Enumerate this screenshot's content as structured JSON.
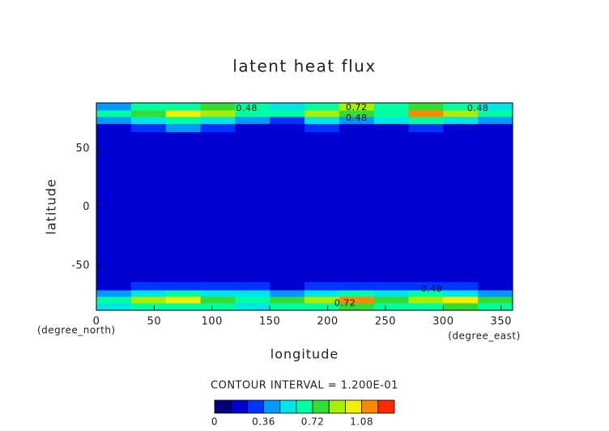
{
  "chart_data": {
    "type": "heatmap",
    "title": "latent heat flux",
    "x_label": "longitude",
    "y_label": "latitude",
    "y_units": "(degree_north)",
    "x_units": "(degree_east)",
    "interval_text": "CONTOUR INTERVAL = 1.200E-01",
    "xlim": [
      0,
      360
    ],
    "ylim": [
      -88,
      89
    ],
    "xticks": [
      0,
      50,
      100,
      150,
      200,
      250,
      300,
      350
    ],
    "yticks": [
      -50,
      0,
      50
    ],
    "x": [
      15,
      45,
      75,
      105,
      135,
      165,
      195,
      225,
      255,
      285,
      315,
      345
    ],
    "y": [
      85,
      80,
      74,
      68,
      60,
      0,
      -60,
      -68,
      -74,
      -79,
      -85
    ],
    "z": [
      [
        0.4,
        0.6,
        0.7,
        0.8,
        0.6,
        0.5,
        0.7,
        0.9,
        0.6,
        0.8,
        0.7,
        0.5
      ],
      [
        0.6,
        0.8,
        1.0,
        0.9,
        0.7,
        0.6,
        0.9,
        0.8,
        0.7,
        1.1,
        0.9,
        0.7
      ],
      [
        0.4,
        0.5,
        0.6,
        0.5,
        0.4,
        0.3,
        0.5,
        0.4,
        0.5,
        0.6,
        0.5,
        0.4
      ],
      [
        0.2,
        0.3,
        0.4,
        0.3,
        0.2,
        0.2,
        0.3,
        0.2,
        0.2,
        0.3,
        0.2,
        0.2
      ],
      [
        0.15,
        0.15,
        0.15,
        0.15,
        0.15,
        0.15,
        0.15,
        0.15,
        0.15,
        0.15,
        0.15,
        0.15
      ],
      [
        0.15,
        0.15,
        0.15,
        0.15,
        0.15,
        0.15,
        0.15,
        0.15,
        0.15,
        0.15,
        0.15,
        0.15
      ],
      [
        0.15,
        0.15,
        0.15,
        0.15,
        0.15,
        0.15,
        0.15,
        0.15,
        0.15,
        0.15,
        0.15,
        0.15
      ],
      [
        0.2,
        0.3,
        0.3,
        0.3,
        0.3,
        0.2,
        0.3,
        0.3,
        0.3,
        0.3,
        0.3,
        0.2
      ],
      [
        0.4,
        0.5,
        0.6,
        0.5,
        0.5,
        0.4,
        0.5,
        0.6,
        0.5,
        0.6,
        0.5,
        0.4
      ],
      [
        0.7,
        0.9,
        1.0,
        0.8,
        0.7,
        0.8,
        0.9,
        1.1,
        0.8,
        0.9,
        1.0,
        0.8
      ],
      [
        0.5,
        0.6,
        0.7,
        0.6,
        0.5,
        0.6,
        0.7,
        0.8,
        0.6,
        0.7,
        0.8,
        0.6
      ]
    ],
    "levels": [
      0,
      0.12,
      0.24,
      0.36,
      0.48,
      0.6,
      0.72,
      0.84,
      0.96,
      1.08,
      1.2,
      1.32
    ],
    "colors": [
      "#00007a",
      "#0000d0",
      "#0033ff",
      "#0099ff",
      "#00e5e5",
      "#00ffa0",
      "#33dd33",
      "#aaee00",
      "#f0f000",
      "#ff8800",
      "#ff2a00"
    ],
    "colorbar_ticks": [
      0,
      0.36,
      0.72,
      1.08
    ],
    "contour_labels": {
      "x": [
        130,
        225,
        330,
        225,
        290,
        215
      ],
      "y": [
        84,
        85,
        84,
        76,
        -70,
        -82
      ],
      "values": [
        0.48,
        0.72,
        0.48,
        0.48,
        0.48,
        0.72
      ]
    }
  }
}
